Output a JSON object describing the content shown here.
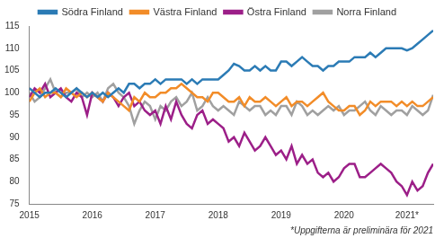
{
  "chart_data": {
    "type": "line",
    "footnote": "*Uppgifterna är preliminära för 2021",
    "categories": [
      "2015",
      null,
      null,
      null,
      null,
      null,
      null,
      null,
      null,
      null,
      null,
      null,
      "2016",
      null,
      null,
      null,
      null,
      null,
      null,
      null,
      null,
      null,
      null,
      null,
      "2017",
      null,
      null,
      null,
      null,
      null,
      null,
      null,
      null,
      null,
      null,
      null,
      "2018",
      null,
      null,
      null,
      null,
      null,
      null,
      null,
      null,
      null,
      null,
      null,
      "2019",
      null,
      null,
      null,
      null,
      null,
      null,
      null,
      null,
      null,
      null,
      null,
      "2020",
      null,
      null,
      null,
      null,
      null,
      null,
      null,
      null,
      null,
      null,
      null,
      "2021*",
      null,
      null,
      null,
      null,
      null
    ],
    "series": [
      {
        "name": "Södra Finland",
        "color": "#2b7bb5",
        "values": [
          101,
          100,
          99,
          100,
          100,
          101,
          100,
          99,
          100,
          101,
          100,
          99,
          100,
          99,
          100,
          99,
          100,
          101,
          100,
          102,
          102,
          101,
          102,
          102,
          103,
          102,
          103,
          103,
          103,
          103,
          102,
          103,
          102,
          103,
          103,
          103,
          103,
          104,
          105,
          106.5,
          106,
          105,
          105,
          106,
          105,
          106,
          105,
          105,
          107,
          107,
          106,
          107,
          108,
          107,
          106,
          106,
          105,
          106,
          106,
          107,
          107,
          107,
          108,
          108,
          108,
          109,
          108,
          109,
          110,
          110,
          110,
          110,
          109.5,
          110,
          111,
          112,
          113,
          114
        ]
      },
      {
        "name": "Västra Finland",
        "color": "#f28c28",
        "values": [
          98,
          100,
          101,
          99,
          100,
          100,
          99,
          101,
          100,
          99,
          100,
          99,
          100,
          99,
          98,
          100,
          99,
          98,
          97,
          96,
          99,
          98,
          100,
          99,
          99,
          100,
          100,
          101,
          101,
          102,
          101,
          100,
          99,
          99,
          98,
          100,
          100,
          99,
          98,
          98,
          99,
          97,
          99,
          98,
          98,
          99,
          98,
          97,
          98,
          99,
          97,
          98,
          98,
          97,
          98,
          99,
          100,
          98,
          97,
          96,
          96,
          97,
          97,
          95,
          96,
          98,
          97,
          98,
          98,
          98,
          97,
          98,
          97,
          98,
          97,
          97,
          98,
          99
        ]
      },
      {
        "name": "Östra Finland",
        "color": "#9c1f88",
        "values": [
          99,
          101,
          100,
          102,
          99,
          100,
          101,
          99,
          98,
          100,
          99,
          95,
          100,
          99,
          98,
          100,
          99,
          97,
          99,
          100,
          97,
          98,
          96,
          95,
          96,
          93,
          97,
          94,
          98,
          95,
          93,
          92,
          95,
          96,
          93,
          94,
          93,
          92,
          89,
          90,
          88,
          91,
          89,
          87,
          88,
          90,
          88,
          86,
          87,
          85,
          88,
          84,
          86,
          84,
          85,
          82,
          81,
          82,
          80,
          81,
          83,
          84,
          84,
          81,
          81,
          82,
          83,
          84,
          83,
          82,
          80,
          79,
          77,
          80,
          78,
          79,
          82,
          84
        ]
      },
      {
        "name": "Norra Finland",
        "color": "#a0a0a0",
        "values": [
          100,
          98,
          99,
          101,
          103,
          100,
          99,
          100,
          100,
          101,
          99,
          100,
          99,
          100,
          98,
          101,
          102,
          100,
          99,
          97,
          93,
          96,
          98,
          97,
          94,
          97,
          96,
          98,
          99,
          97,
          98,
          100,
          96,
          97,
          99,
          97,
          96,
          97,
          96,
          95,
          98,
          97,
          96,
          97,
          97,
          95,
          96,
          95,
          97,
          97,
          95,
          98,
          97,
          95,
          96,
          95,
          96,
          97,
          96,
          97,
          95,
          96,
          96,
          97,
          98,
          96,
          95,
          97,
          96,
          95,
          96,
          96,
          95,
          97,
          96,
          95,
          96,
          99.5
        ]
      }
    ],
    "ylim": [
      75,
      115
    ],
    "yticks": [
      75,
      80,
      85,
      90,
      95,
      100,
      105,
      110,
      115
    ],
    "grid": false,
    "legend": "top"
  }
}
